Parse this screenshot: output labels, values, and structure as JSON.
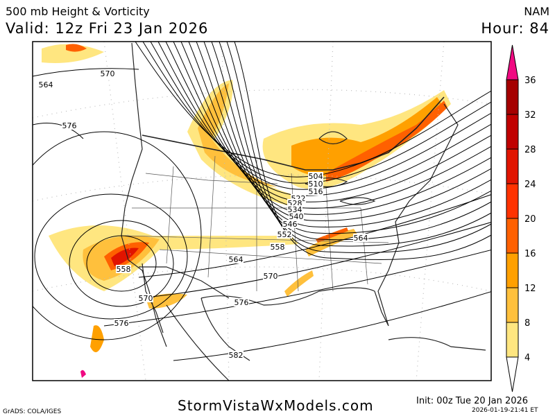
{
  "header": {
    "title": "500 mb Height & Vorticity",
    "valid": "Valid: 12z Fri 23 Jan 2026",
    "model": "NAM",
    "hour": "Hour: 84"
  },
  "footer": {
    "credit": "GrADS: COLA/IGES",
    "site": "StormVistaWxModels.com",
    "init": "Init: 00z Tue 20 Jan 2026",
    "generated": "2026-01-19-21:41 ET"
  },
  "colorbar": {
    "levels": [
      "4",
      "8",
      "12",
      "16",
      "20",
      "24",
      "28",
      "32",
      "36"
    ],
    "colors": [
      "#ffe680",
      "#ffc03c",
      "#ffa000",
      "#ff6000",
      "#ff3200",
      "#e11400",
      "#c00000",
      "#a50000"
    ],
    "over_color": "#f00a82",
    "under_color": "#ffffff"
  },
  "map": {
    "contour_labels": [
      "504",
      "510",
      "516",
      "522",
      "528",
      "534",
      "540",
      "546",
      "552",
      "558",
      "564",
      "564",
      "570",
      "576",
      "558",
      "570",
      "576",
      "570",
      "576",
      "582",
      "564"
    ],
    "vorticity_colors": {
      "low": "#ffe680",
      "mid": "#ffc03c",
      "high": "#ffa000",
      "higher": "#ff6000",
      "max": "#e11400",
      "extreme": "#f00a82"
    }
  }
}
